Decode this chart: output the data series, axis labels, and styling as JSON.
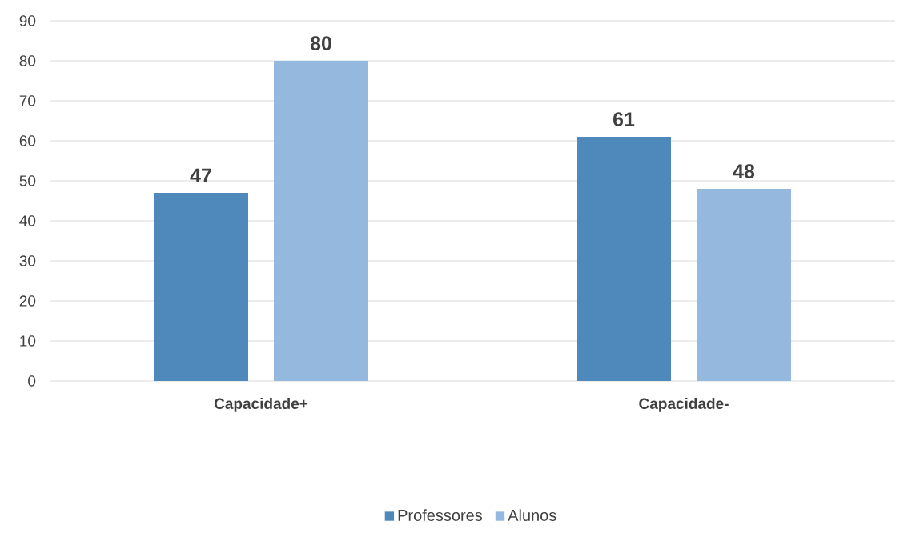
{
  "chart_data": {
    "type": "bar",
    "categories": [
      "Capacidade+",
      "Capacidade-"
    ],
    "series": [
      {
        "name": "Professores",
        "color": "#4f88bb",
        "values": [
          47,
          61
        ]
      },
      {
        "name": "Alunos",
        "color": "#95b8de",
        "values": [
          80,
          48
        ]
      }
    ],
    "ylim": [
      0,
      90
    ],
    "yticks": [
      0,
      10,
      20,
      30,
      40,
      50,
      60,
      70,
      80,
      90
    ],
    "grid": "y",
    "legend": "bottom",
    "data_labels": true
  }
}
